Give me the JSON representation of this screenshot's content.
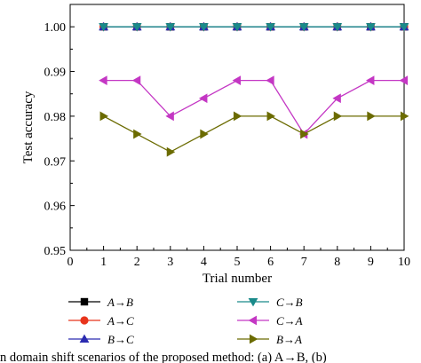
{
  "chart_data": {
    "type": "line",
    "xlabel": "Trial number",
    "ylabel": "Test accuracy",
    "xlim": [
      0,
      10
    ],
    "ylim": [
      0.95,
      1.005
    ],
    "x_ticks": [
      0,
      1,
      2,
      3,
      4,
      5,
      6,
      7,
      8,
      9,
      10
    ],
    "y_ticks": [
      "0.95",
      "0.96",
      "0.97",
      "0.98",
      "0.99",
      "1.00"
    ],
    "x": [
      1,
      2,
      3,
      4,
      5,
      6,
      7,
      8,
      9,
      10
    ],
    "grid": false,
    "legend_position": "bottom",
    "series": [
      {
        "name": "A→B",
        "color": "#000000",
        "marker": "square",
        "values": [
          1.0,
          1.0,
          1.0,
          1.0,
          1.0,
          1.0,
          1.0,
          1.0,
          1.0,
          1.0
        ]
      },
      {
        "name": "C→B",
        "color": "#1a8a8a",
        "marker": "triangle-down",
        "values": [
          1.0,
          1.0,
          1.0,
          1.0,
          1.0,
          1.0,
          1.0,
          1.0,
          1.0,
          1.0
        ]
      },
      {
        "name": "A→C",
        "color": "#e8341c",
        "marker": "circle",
        "values": [
          1.0,
          1.0,
          1.0,
          1.0,
          1.0,
          1.0,
          1.0,
          1.0,
          1.0,
          1.0
        ]
      },
      {
        "name": "C→A",
        "color": "#c437c4",
        "marker": "triangle-left",
        "values": [
          0.988,
          0.988,
          0.98,
          0.984,
          0.988,
          0.988,
          0.976,
          0.984,
          0.988,
          0.988
        ]
      },
      {
        "name": "B→C",
        "color": "#2b2bb0",
        "marker": "triangle-up",
        "values": [
          1.0,
          1.0,
          1.0,
          1.0,
          1.0,
          1.0,
          1.0,
          1.0,
          1.0,
          1.0
        ]
      },
      {
        "name": "B→A",
        "color": "#6b6b00",
        "marker": "triangle-right",
        "values": [
          0.98,
          0.976,
          0.972,
          0.976,
          0.98,
          0.98,
          0.976,
          0.98,
          0.98,
          0.98
        ]
      }
    ]
  },
  "caption": "in domain shift scenarios of the proposed method: (a) A→B, (b)"
}
